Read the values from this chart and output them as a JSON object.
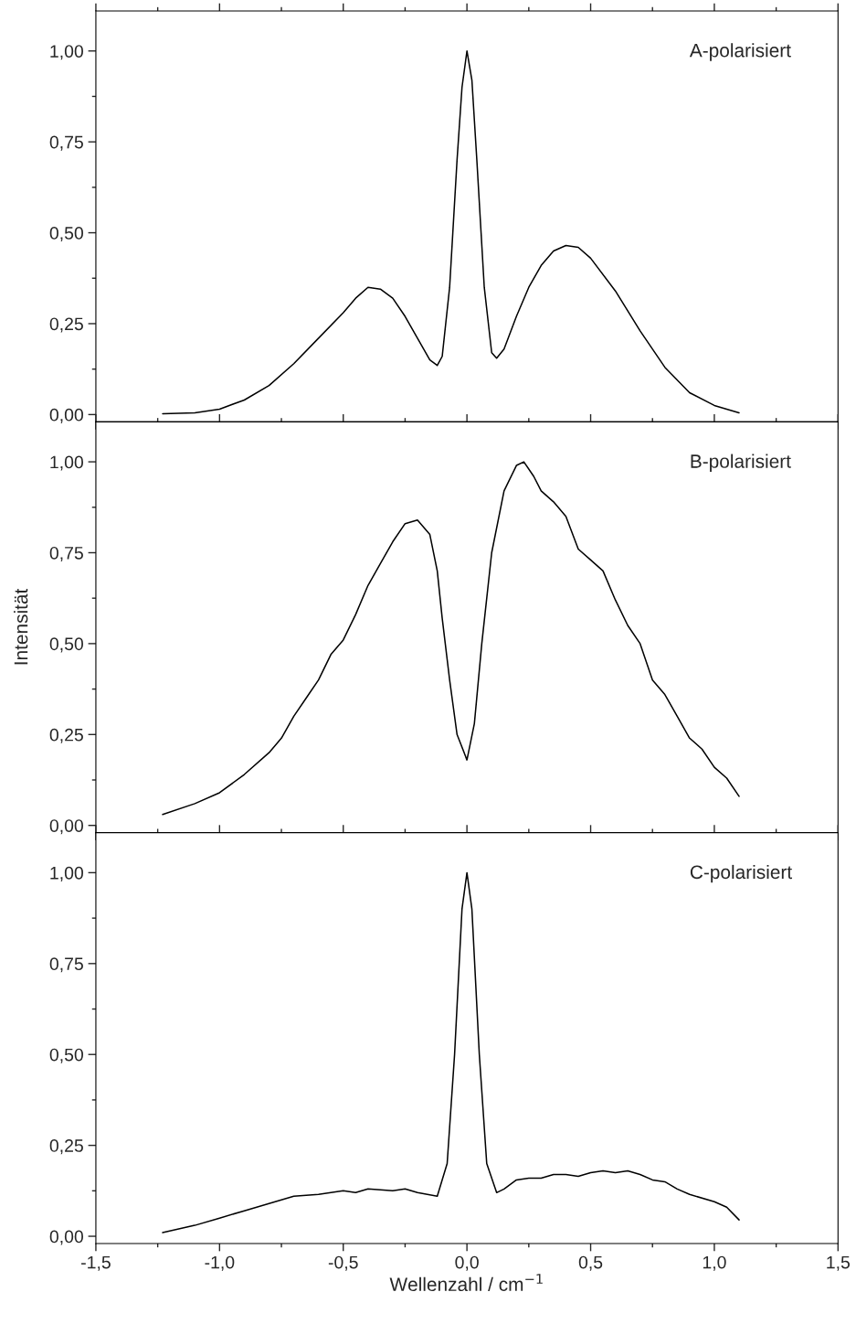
{
  "chart_data": [
    {
      "type": "line",
      "annotations": [
        "A-polarisiert"
      ],
      "tick_labels": "y",
      "xlim": [
        -1.5,
        1.5
      ],
      "ylim": [
        -0.02,
        1.11
      ],
      "xticks": [
        {
          "value": -1.5,
          "label": null
        },
        {
          "value": -1.0,
          "label": null
        },
        {
          "value": -0.5,
          "label": null
        },
        {
          "value": 0.0,
          "label": null
        },
        {
          "value": 0.5,
          "label": null
        },
        {
          "value": 1.0,
          "label": null
        },
        {
          "value": 1.5,
          "label": null
        }
      ],
      "yticks": [
        {
          "value": 0,
          "label": "0,00"
        },
        {
          "value": 0.25,
          "label": "0,25"
        },
        {
          "value": 0.5,
          "label": "0,50"
        },
        {
          "value": 0.75,
          "label": "0,75"
        },
        {
          "value": 1.0,
          "label": "1,00"
        }
      ],
      "grid": false,
      "legend": false,
      "series": [
        {
          "color": "#000000",
          "x": [
            -1.23,
            -1.1,
            -1.0,
            -0.9,
            -0.8,
            -0.7,
            -0.6,
            -0.5,
            -0.45,
            -0.4,
            -0.35,
            -0.3,
            -0.25,
            -0.2,
            -0.15,
            -0.12,
            -0.1,
            -0.07,
            -0.04,
            -0.02,
            0,
            0.02,
            0.04,
            0.07,
            0.1,
            0.12,
            0.15,
            0.2,
            0.25,
            0.3,
            0.35,
            0.4,
            0.45,
            0.5,
            0.6,
            0.7,
            0.8,
            0.9,
            1.0,
            1.1
          ],
          "values": [
            0.002,
            0.005,
            0.015,
            0.04,
            0.08,
            0.14,
            0.21,
            0.28,
            0.32,
            0.35,
            0.345,
            0.32,
            0.27,
            0.21,
            0.15,
            0.135,
            0.16,
            0.35,
            0.7,
            0.9,
            1.0,
            0.92,
            0.7,
            0.35,
            0.17,
            0.155,
            0.18,
            0.27,
            0.35,
            0.41,
            0.45,
            0.465,
            0.46,
            0.43,
            0.34,
            0.23,
            0.13,
            0.06,
            0.025,
            0.005
          ]
        }
      ]
    },
    {
      "type": "line",
      "annotations": [
        "B-polarisiert"
      ],
      "ylabel": "Intensität",
      "tick_labels": "y",
      "xlim": [
        -1.5,
        1.5
      ],
      "ylim": [
        -0.02,
        1.11
      ],
      "xticks": [
        {
          "value": -1.5,
          "label": null
        },
        {
          "value": -1.0,
          "label": null
        },
        {
          "value": -0.5,
          "label": null
        },
        {
          "value": 0.0,
          "label": null
        },
        {
          "value": 0.5,
          "label": null
        },
        {
          "value": 1.0,
          "label": null
        },
        {
          "value": 1.5,
          "label": null
        }
      ],
      "yticks": [
        {
          "value": 0,
          "label": "0,00"
        },
        {
          "value": 0.25,
          "label": "0,25"
        },
        {
          "value": 0.5,
          "label": "0,50"
        },
        {
          "value": 0.75,
          "label": "0,75"
        },
        {
          "value": 1.0,
          "label": "1,00"
        }
      ],
      "grid": false,
      "legend": false,
      "series": [
        {
          "color": "#000000",
          "x": [
            -1.23,
            -1.1,
            -1.0,
            -0.9,
            -0.8,
            -0.75,
            -0.7,
            -0.65,
            -0.6,
            -0.55,
            -0.5,
            -0.45,
            -0.4,
            -0.35,
            -0.3,
            -0.25,
            -0.2,
            -0.15,
            -0.12,
            -0.1,
            -0.07,
            -0.04,
            0,
            0.03,
            0.06,
            0.1,
            0.15,
            0.2,
            0.23,
            0.27,
            0.3,
            0.35,
            0.4,
            0.45,
            0.5,
            0.55,
            0.6,
            0.65,
            0.7,
            0.75,
            0.8,
            0.85,
            0.9,
            0.95,
            1.0,
            1.05,
            1.1
          ],
          "values": [
            0.03,
            0.06,
            0.09,
            0.14,
            0.2,
            0.24,
            0.3,
            0.35,
            0.4,
            0.47,
            0.51,
            0.58,
            0.66,
            0.72,
            0.78,
            0.83,
            0.84,
            0.8,
            0.7,
            0.57,
            0.4,
            0.25,
            0.18,
            0.28,
            0.5,
            0.75,
            0.92,
            0.99,
            1.0,
            0.96,
            0.92,
            0.89,
            0.85,
            0.76,
            0.73,
            0.7,
            0.62,
            0.55,
            0.5,
            0.4,
            0.36,
            0.3,
            0.24,
            0.21,
            0.16,
            0.13,
            0.08
          ]
        }
      ]
    },
    {
      "type": "line",
      "annotations": [
        "C-polarisiert"
      ],
      "xlabel": "Wellenzahl / cm$^{−1}$",
      "xlim": [
        -1.5,
        1.5
      ],
      "ylim": [
        -0.02,
        1.11
      ],
      "xticks": [
        {
          "value": -1.5,
          "label": "-1,5"
        },
        {
          "value": -1.0,
          "label": "-1,0"
        },
        {
          "value": -0.5,
          "label": "-0,5"
        },
        {
          "value": 0.0,
          "label": "0,0"
        },
        {
          "value": 0.5,
          "label": "0,5"
        },
        {
          "value": 1.0,
          "label": "1,0"
        },
        {
          "value": 1.5,
          "label": "1,5"
        }
      ],
      "yticks": [
        {
          "value": 0,
          "label": "0,00"
        },
        {
          "value": 0.25,
          "label": "0,25"
        },
        {
          "value": 0.5,
          "label": "0,50"
        },
        {
          "value": 0.75,
          "label": "0,75"
        },
        {
          "value": 1.0,
          "label": "1,00"
        }
      ],
      "grid": false,
      "legend": false,
      "series": [
        {
          "color": "#000000",
          "x": [
            -1.23,
            -1.1,
            -1.0,
            -0.9,
            -0.8,
            -0.7,
            -0.6,
            -0.5,
            -0.45,
            -0.4,
            -0.3,
            -0.25,
            -0.2,
            -0.12,
            -0.08,
            -0.05,
            -0.02,
            0,
            0.02,
            0.05,
            0.08,
            0.12,
            0.15,
            0.2,
            0.25,
            0.3,
            0.35,
            0.4,
            0.45,
            0.5,
            0.55,
            0.6,
            0.65,
            0.7,
            0.75,
            0.8,
            0.85,
            0.9,
            1.0,
            1.05,
            1.1
          ],
          "values": [
            0.01,
            0.03,
            0.05,
            0.07,
            0.09,
            0.11,
            0.115,
            0.125,
            0.12,
            0.13,
            0.125,
            0.13,
            0.12,
            0.11,
            0.2,
            0.5,
            0.9,
            1.0,
            0.9,
            0.5,
            0.2,
            0.12,
            0.13,
            0.155,
            0.16,
            0.16,
            0.17,
            0.17,
            0.165,
            0.175,
            0.18,
            0.175,
            0.18,
            0.17,
            0.155,
            0.15,
            0.13,
            0.115,
            0.095,
            0.08,
            0.045
          ]
        }
      ]
    }
  ]
}
